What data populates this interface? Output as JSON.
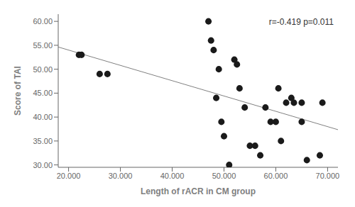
{
  "chart_data": {
    "type": "scatter",
    "xlabel": "Length of rACR in CM group",
    "ylabel": "Score of TAI",
    "annotation": "r=-0.419 p=0.011",
    "xlim": [
      18000,
      72000
    ],
    "ylim": [
      29.5,
      61.5
    ],
    "xticks": [
      {
        "value": 20000,
        "label": "20.000"
      },
      {
        "value": 30000,
        "label": "30.000"
      },
      {
        "value": 40000,
        "label": "40.000"
      },
      {
        "value": 50000,
        "label": "50.000"
      },
      {
        "value": 60000,
        "label": "60.000"
      },
      {
        "value": 70000,
        "label": "70.000"
      }
    ],
    "yticks": [
      {
        "value": 30,
        "label": "30.00"
      },
      {
        "value": 35,
        "label": "35.00"
      },
      {
        "value": 40,
        "label": "40.00"
      },
      {
        "value": 45,
        "label": "45.00"
      },
      {
        "value": 50,
        "label": "50.00"
      },
      {
        "value": 55,
        "label": "55.00"
      },
      {
        "value": 60,
        "label": "60.00"
      }
    ],
    "grid": false,
    "series": [
      {
        "type": "scatter",
        "color": "#1a1a1a",
        "x": [
          22000,
          22500,
          26000,
          27500,
          47000,
          47500,
          48000,
          48500,
          49000,
          49500,
          50000,
          51000,
          52000,
          52500,
          53000,
          54000,
          55000,
          56000,
          57000,
          58000,
          59000,
          60000,
          60500,
          61000,
          62000,
          63000,
          63500,
          65000,
          65000,
          66000,
          68500,
          69000
        ],
        "values": [
          53,
          53,
          49,
          49,
          60,
          56,
          54,
          44,
          50,
          39,
          36,
          30,
          52,
          51,
          46,
          42,
          34,
          34,
          32,
          42,
          39,
          39,
          46,
          35,
          43,
          44,
          43,
          39,
          43,
          31,
          32,
          43
        ]
      },
      {
        "type": "line",
        "color": "#808080",
        "x": [
          18000,
          72000
        ],
        "values": [
          54.64,
          37.36
        ]
      }
    ]
  }
}
